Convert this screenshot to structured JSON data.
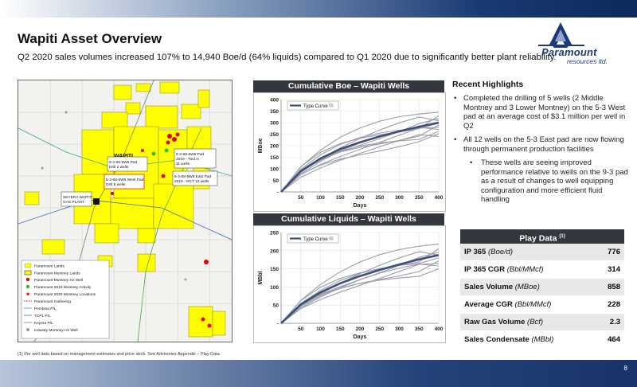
{
  "header": {
    "title": "Wapiti Asset Overview",
    "subtitle": "Q2 2020 sales volumes increased 107% to 14,940 Boe/d (64% liquids) compared to Q1 2020 due to significantly better plant reliability."
  },
  "logo": {
    "name": "Paramount",
    "sub": "resources ltd."
  },
  "map": {
    "label_wapiti": "WAPITI",
    "label_plant": "SEYERA WAPITI GAS PLANT",
    "callouts": [
      "6-4-68-5W6 Pad Drill 2 wells",
      "5-3-68-5W6 West Pad Drill 5 wells",
      "9-3-68-6W6 Pad 2019 - Tied in 11 wells",
      "5-3-68-6W6 East Pad 2019 - DCT 12 wells"
    ],
    "legend": [
      {
        "label": "Paramount Lands",
        "icon": "yellow-box"
      },
      {
        "label": "Paramount Montney Lands",
        "icon": "yellow-box"
      },
      {
        "label": "Paramount Montney Hz Well",
        "icon": "red-dot"
      },
      {
        "label": "Paramount 2019 Montney Activity",
        "icon": "green-dot"
      },
      {
        "label": "Paramount 2020 Montney Locations",
        "icon": "red-star"
      },
      {
        "label": "Paramount Gathering",
        "icon": "red-dash"
      },
      {
        "label": "Pembina P/L",
        "icon": "line"
      },
      {
        "label": "TCPL P/L",
        "icon": "line"
      },
      {
        "label": "Keyera P/L",
        "icon": "line"
      },
      {
        "label": "Industry Montney Hz Well",
        "icon": "grey-dot"
      }
    ]
  },
  "boe_chart": {
    "title": "Cumulative Boe –  Wapiti Wells",
    "legend": "Type Curve",
    "legend_sup": "(1)",
    "ylabel": "MBoe",
    "xlabel": "Days",
    "yticks": [
      "400",
      "350",
      "300",
      "250",
      "200",
      "150",
      "100",
      "50",
      "-"
    ],
    "xticks": [
      "50",
      "100",
      "150",
      "200",
      "250",
      "300",
      "350",
      "400"
    ]
  },
  "liq_chart": {
    "title": "Cumulative Liquids – Wapiti Wells",
    "legend": "Type Curve",
    "legend_sup": "(1)",
    "ylabel": "MBbl",
    "xlabel": "Days",
    "yticks": [
      "250",
      "200",
      "150",
      "100",
      "50",
      "-"
    ],
    "xticks": [
      "50",
      "100",
      "150",
      "200",
      "250",
      "300",
      "350",
      "400"
    ]
  },
  "chart_data": [
    {
      "type": "line",
      "title": "Cumulative Boe –  Wapiti Wells",
      "xlabel": "Days",
      "ylabel": "MBoe",
      "xlim": [
        0,
        400
      ],
      "ylim": [
        0,
        400
      ],
      "series": [
        {
          "name": "Type Curve",
          "x": [
            0,
            50,
            100,
            150,
            200,
            250,
            300,
            350,
            400
          ],
          "values": [
            0,
            90,
            145,
            185,
            215,
            240,
            262,
            282,
            300
          ]
        }
      ],
      "well_curves_final": [
        345,
        330,
        318,
        308,
        298,
        290,
        280,
        270,
        262,
        252,
        240
      ]
    },
    {
      "type": "line",
      "title": "Cumulative Liquids – Wapiti Wells",
      "xlabel": "Days",
      "ylabel": "MBbl",
      "xlim": [
        0,
        400
      ],
      "ylim": [
        0,
        250
      ],
      "series": [
        {
          "name": "Type Curve",
          "x": [
            0,
            50,
            100,
            150,
            200,
            250,
            300,
            350,
            400
          ],
          "values": [
            0,
            52,
            85,
            110,
            130,
            147,
            162,
            176,
            188
          ]
        }
      ],
      "well_curves_final": [
        218,
        205,
        196,
        188,
        180,
        172,
        165,
        158,
        150
      ]
    }
  ],
  "highlights": {
    "title": "Recent Highlights",
    "items": [
      "Completed the drilling of 5 wells (2 Middle Montney and 3 Lower Montney) on the 5-3 West pad at an average cost of $3.1 million per well in Q2",
      "All 12 wells on the 5-3 East pad are now flowing through permanent production facilities"
    ],
    "sub_items": [
      "These wells are seeing improved performance relative to wells on the 9-3 pad as a result of changes to well equipping configuration and more efficient fluid handling"
    ]
  },
  "play_data": {
    "title": "Play Data",
    "title_sup": "(1)",
    "rows": [
      {
        "label": "IP 365",
        "unit": "(Boe/d)",
        "value": "776"
      },
      {
        "label": "IP 365 CGR",
        "unit": "(Bbl/MMcf)",
        "value": "314"
      },
      {
        "label": "Sales Volume",
        "unit": "(MBoe)",
        "value": "858"
      },
      {
        "label": "Average CGR",
        "unit": "(Bbl/MMcf)",
        "value": "228"
      },
      {
        "label": "Raw Gas Volume",
        "unit": "(Bcf)",
        "value": "2.3"
      },
      {
        "label": "Sales Condensate",
        "unit": "(MBbl)",
        "value": "464"
      }
    ]
  },
  "footer": {
    "footnote": "(1) Per well data based on management estimates and price deck. See Advisories Appendix – Play Data.",
    "page": "8"
  },
  "colors": {
    "panel_header": "#34373d",
    "type_curve": "#3d4f7c",
    "well_curve": "#9a9ea6",
    "land_yellow": "#ffff00",
    "brand_blue": "#1b3a78"
  }
}
